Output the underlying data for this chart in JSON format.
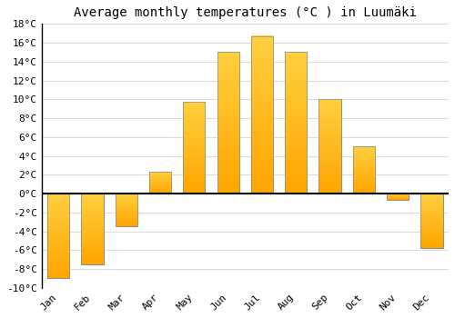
{
  "title": "Average monthly temperatures (°C ) in Luumäki",
  "months": [
    "Jan",
    "Feb",
    "Mar",
    "Apr",
    "May",
    "Jun",
    "Jul",
    "Aug",
    "Sep",
    "Oct",
    "Nov",
    "Dec"
  ],
  "values": [
    -9.0,
    -7.5,
    -3.5,
    2.3,
    9.7,
    15.0,
    16.7,
    15.0,
    10.0,
    5.0,
    -0.7,
    -5.8
  ],
  "bar_color_top": "#FFD700",
  "bar_color_bottom": "#FFA500",
  "bar_edge_color": "#888888",
  "ylim": [
    -10,
    18
  ],
  "yticks": [
    -10,
    -8,
    -6,
    -4,
    -2,
    0,
    2,
    4,
    6,
    8,
    10,
    12,
    14,
    16,
    18
  ],
  "ytick_labels": [
    "-10°C",
    "-8°C",
    "-6°C",
    "-4°C",
    "-2°C",
    "0°C",
    "2°C",
    "4°C",
    "6°C",
    "8°C",
    "10°C",
    "12°C",
    "14°C",
    "16°C",
    "18°C"
  ],
  "background_color": "#ffffff",
  "grid_color": "#dddddd",
  "zero_line_color": "#000000",
  "title_fontsize": 10,
  "tick_fontsize": 8,
  "font_family": "monospace"
}
